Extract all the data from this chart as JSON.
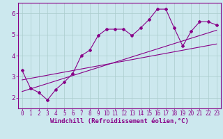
{
  "bg_color": "#cce8ee",
  "line_color": "#880088",
  "grid_color": "#aacccc",
  "xlabel": "Windchill (Refroidissement éolien,°C)",
  "xlabel_color": "#880088",
  "xlabel_fontsize": 6.5,
  "tick_color": "#880088",
  "tick_fontsize": 5.5,
  "ylim": [
    1.5,
    6.5
  ],
  "xlim": [
    -0.5,
    23.5
  ],
  "yticks": [
    2,
    3,
    4,
    5,
    6
  ],
  "xticks": [
    0,
    1,
    2,
    3,
    4,
    5,
    6,
    7,
    8,
    9,
    10,
    11,
    12,
    13,
    14,
    15,
    16,
    17,
    18,
    19,
    20,
    21,
    22,
    23
  ],
  "line1_x": [
    0,
    1,
    2,
    3,
    4,
    5,
    6,
    7,
    8,
    9,
    10,
    11,
    12,
    13,
    14,
    15,
    16,
    17,
    18,
    19,
    20,
    21,
    22,
    23
  ],
  "line1_y": [
    3.3,
    2.45,
    2.25,
    1.9,
    2.4,
    2.75,
    3.15,
    4.0,
    4.25,
    4.95,
    5.25,
    5.25,
    5.25,
    4.95,
    5.3,
    5.7,
    6.2,
    6.2,
    5.3,
    4.45,
    5.15,
    5.6,
    5.6,
    5.45
  ],
  "line2_x": [
    0,
    23
  ],
  "line2_y": [
    2.3,
    5.2
  ],
  "line3_x": [
    0,
    23
  ],
  "line3_y": [
    2.85,
    4.55
  ]
}
